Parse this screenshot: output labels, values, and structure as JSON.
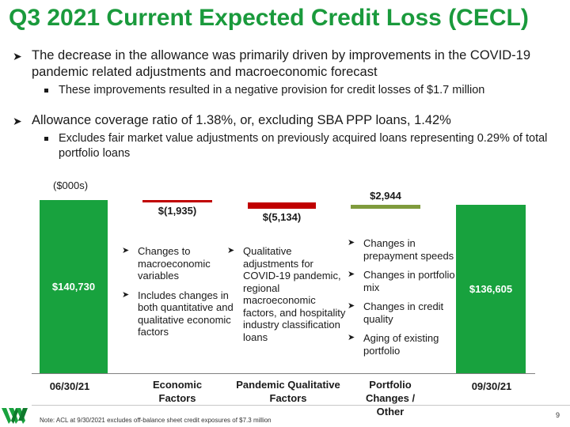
{
  "title": "Q3 2021 Current Expected Credit Loss (CECL)",
  "bullets": [
    {
      "text": "The decrease in the allowance was primarily driven by improvements in the COVID-19 pandemic related adjustments and macroeconomic forecast",
      "sub": "These improvements resulted in a negative provision for credit losses of $1.7 million"
    },
    {
      "text": "Allowance coverage ratio of 1.38%, or, excluding SBA PPP loans, 1.42%",
      "sub": "Excludes fair market value adjustments on previously acquired loans representing 0.29% of total portfolio loans"
    }
  ],
  "chart_data": {
    "type": "bar",
    "subtype": "waterfall",
    "unit_label": "($000s)",
    "categories": [
      "06/30/21",
      "Economic Factors",
      "Pandemic Qualitative Factors",
      "Portfolio Changes / Other",
      "09/30/21"
    ],
    "values": [
      140730,
      -1935,
      -5134,
      2944,
      136605
    ],
    "value_labels": [
      "$140,730",
      "$(1,935)",
      "$(5,134)",
      "$2,944",
      "$136,605"
    ],
    "colors": {
      "total": "#18a23e",
      "decrease": "#c00000",
      "increase": "#7f9b3d"
    }
  },
  "explanations": {
    "economic": [
      "Changes to macroeconomic variables",
      "Includes changes in both quantitative and qualitative economic factors"
    ],
    "pandemic": [
      "Qualitative adjustments for COVID-19 pandemic, regional macroeconomic factors, and hospitality industry classification loans"
    ],
    "portfolio": [
      "Changes in prepayment speeds",
      "Changes in portfolio mix",
      "Changes in credit quality",
      "Aging of existing portfolio"
    ]
  },
  "icons": {
    "bullet": "arrow-right-icon",
    "sub_bullet": "square-icon"
  },
  "footer": {
    "note": "Note: ACL at 9/30/2021 excludes off-balance sheet credit exposures of $7.3 million",
    "page": "9"
  }
}
